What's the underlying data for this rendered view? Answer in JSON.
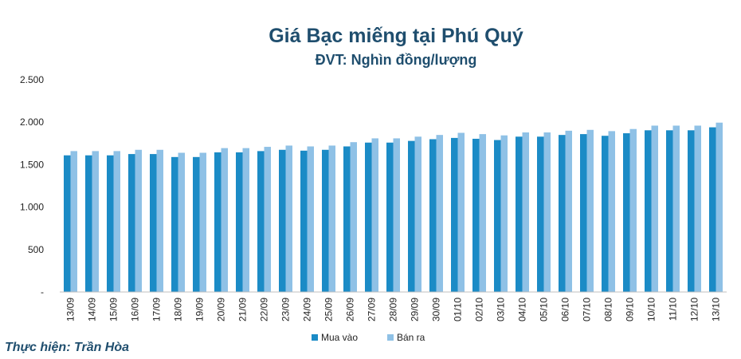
{
  "chart_data": {
    "type": "bar",
    "title": "Giá Bạc miếng tại Phú Quý",
    "subtitle": "ĐVT: Nghìn đồng/lượng",
    "categories": [
      "13/09",
      "14/09",
      "15/09",
      "16/09",
      "17/09",
      "18/09",
      "19/09",
      "20/09",
      "21/09",
      "22/09",
      "23/09",
      "24/09",
      "25/09",
      "26/09",
      "27/09",
      "28/09",
      "29/09",
      "30/09",
      "01/10",
      "02/10",
      "03/10",
      "04/10",
      "05/10",
      "06/10",
      "07/10",
      "08/10",
      "09/10",
      "10/10",
      "11/10",
      "12/10",
      "13/10"
    ],
    "series": [
      {
        "name": "Mua vào",
        "color": "#1b8bc6",
        "values": [
          1610,
          1610,
          1610,
          1625,
          1625,
          1590,
          1590,
          1645,
          1645,
          1660,
          1675,
          1665,
          1675,
          1715,
          1760,
          1760,
          1780,
          1800,
          1815,
          1805,
          1790,
          1830,
          1830,
          1850,
          1860,
          1840,
          1870,
          1905,
          1905,
          1905,
          1940
        ]
      },
      {
        "name": "Bán ra",
        "color": "#8fc1e6",
        "values": [
          1660,
          1660,
          1660,
          1675,
          1675,
          1640,
          1640,
          1695,
          1695,
          1710,
          1725,
          1715,
          1725,
          1765,
          1810,
          1810,
          1830,
          1850,
          1875,
          1860,
          1845,
          1880,
          1880,
          1900,
          1910,
          1895,
          1920,
          1960,
          1960,
          1960,
          1995
        ]
      }
    ],
    "y_ticks": [
      "-",
      "500",
      "1.000",
      "1.500",
      "2.000",
      "2.500"
    ],
    "ylim": [
      0,
      2500
    ],
    "grid": false,
    "legend": "bottom"
  },
  "credit": "Thực hiện: Trần Hòa"
}
